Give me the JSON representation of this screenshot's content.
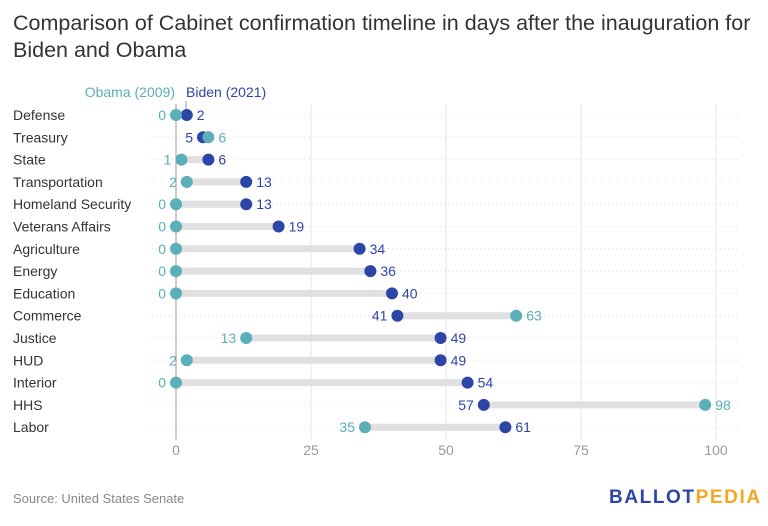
{
  "chart_data": {
    "type": "dumbbell",
    "title": "Comparison of Cabinet confirmation timeline in days after the inauguration for Biden and Obama",
    "xlabel": "",
    "ylabel": "",
    "xlim": [
      0,
      104
    ],
    "xticks": [
      0,
      25,
      50,
      75,
      100
    ],
    "grid": true,
    "legend_position": "top",
    "categories": [
      "Defense",
      "Treasury",
      "State",
      "Transportation",
      "Homeland Security",
      "Veterans Affairs",
      "Agriculture",
      "Energy",
      "Education",
      "Commerce",
      "Justice",
      "HUD",
      "Interior",
      "HHS",
      "Labor"
    ],
    "series": [
      {
        "name": "Obama (2009)",
        "color": "#5aafb8",
        "values": [
          0,
          6,
          1,
          2,
          0,
          0,
          0,
          0,
          0,
          63,
          13,
          2,
          0,
          98,
          35
        ]
      },
      {
        "name": "Biden (2021)",
        "color": "#2e45a8",
        "values": [
          2,
          5,
          6,
          13,
          13,
          19,
          34,
          36,
          40,
          41,
          49,
          49,
          54,
          57,
          61
        ]
      }
    ]
  },
  "source": "Source: United States Senate",
  "logo": {
    "part1": "BALLOT",
    "part2": "PEDIA"
  }
}
